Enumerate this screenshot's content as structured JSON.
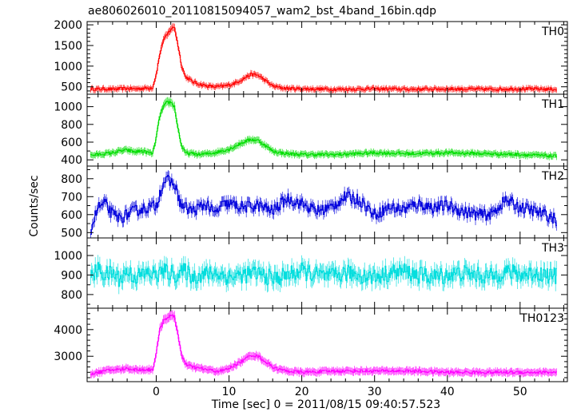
{
  "title": "ae806026010_20110815094057_wam2_bst_4band_16bin.qdp",
  "chart_data": {
    "type": "line",
    "ylabel": "Counts/sec",
    "xlabel": "Time [sec] 0 = 2011/08/15 09:40:57.523",
    "xlim": [
      -9.5,
      56.5
    ],
    "xticks": [
      0,
      10,
      20,
      30,
      40,
      50
    ],
    "x_minor_step": 2,
    "grid": false,
    "panels": [
      {
        "label": "TH0",
        "color": "#ff0000",
        "ylim": [
          320,
          2080
        ],
        "yticks": [
          500,
          1000,
          1500,
          2000
        ],
        "y_minor_step": 100,
        "x": [
          -9,
          -8,
          -7,
          -6,
          -5,
          -4,
          -3,
          -2,
          -1,
          -0.5,
          0,
          0.5,
          1,
          1.5,
          2,
          2.5,
          3,
          3.5,
          4,
          5,
          6,
          7,
          8,
          9,
          10,
          11,
          12,
          13,
          14,
          15,
          16,
          17,
          18,
          20,
          25,
          30,
          35,
          40,
          45,
          50,
          55
        ],
        "values": [
          450,
          440,
          450,
          440,
          450,
          460,
          450,
          460,
          470,
          480,
          800,
          1300,
          1650,
          1750,
          1900,
          1950,
          1500,
          1000,
          750,
          620,
          560,
          520,
          500,
          510,
          540,
          600,
          700,
          800,
          780,
          650,
          520,
          480,
          460,
          450,
          440,
          450,
          440,
          450,
          440,
          450,
          440
        ]
      },
      {
        "label": "TH1",
        "color": "#00dd00",
        "ylim": [
          330,
          1140
        ],
        "yticks": [
          400,
          600,
          800,
          1000
        ],
        "y_minor_step": 100,
        "x": [
          -9,
          -8,
          -7,
          -6,
          -5,
          -4,
          -3,
          -2,
          -1,
          -0.5,
          0,
          0.5,
          1,
          1.5,
          2,
          2.5,
          3,
          3.5,
          4,
          5,
          6,
          7,
          8,
          9,
          10,
          11,
          12,
          13,
          14,
          15,
          16,
          17,
          18,
          20,
          25,
          30,
          35,
          40,
          45,
          50,
          55
        ],
        "values": [
          450,
          460,
          470,
          480,
          500,
          510,
          490,
          500,
          480,
          470,
          650,
          900,
          1000,
          1050,
          1050,
          1000,
          750,
          550,
          480,
          470,
          460,
          470,
          480,
          500,
          520,
          560,
          600,
          630,
          620,
          560,
          500,
          480,
          470,
          460,
          460,
          480,
          470,
          480,
          470,
          460,
          440
        ]
      },
      {
        "label": "TH2",
        "color": "#0000dd",
        "ylim": [
          470,
          870
        ],
        "yticks": [
          500,
          600,
          700,
          800
        ],
        "y_minor_step": 50,
        "x": [
          -9,
          -8,
          -7,
          -6,
          -5,
          -4,
          -3,
          -2,
          -1,
          0,
          0.5,
          1,
          1.5,
          2,
          2.5,
          3,
          3.5,
          4,
          5,
          6,
          7,
          8,
          9,
          10,
          12,
          14,
          16,
          18,
          20,
          22,
          24,
          26,
          28,
          30,
          32,
          34,
          36,
          38,
          40,
          42,
          44,
          46,
          48,
          50,
          52,
          54,
          55
        ],
        "values": [
          520,
          640,
          660,
          600,
          580,
          600,
          620,
          630,
          640,
          650,
          720,
          780,
          790,
          780,
          770,
          700,
          650,
          640,
          620,
          640,
          660,
          600,
          650,
          660,
          640,
          650,
          620,
          690,
          660,
          620,
          640,
          700,
          680,
          600,
          640,
          630,
          660,
          640,
          650,
          620,
          600,
          600,
          680,
          640,
          620,
          590,
          570
        ]
      },
      {
        "label": "TH3",
        "color": "#00dddd",
        "ylim": [
          730,
          1090
        ],
        "yticks": [
          800,
          900,
          1000
        ],
        "y_minor_step": 50,
        "x": [
          -9,
          -8,
          -7,
          -6,
          -5,
          -4,
          -3,
          -2,
          -1,
          0,
          1,
          2,
          3,
          4,
          5,
          6,
          8,
          10,
          12,
          14,
          16,
          18,
          20,
          22,
          24,
          26,
          28,
          30,
          32,
          34,
          36,
          38,
          40,
          42,
          44,
          46,
          48,
          50,
          52,
          54,
          55
        ],
        "values": [
          880,
          930,
          900,
          910,
          880,
          920,
          890,
          900,
          910,
          900,
          920,
          910,
          900,
          920,
          890,
          900,
          910,
          890,
          900,
          910,
          880,
          900,
          920,
          900,
          890,
          910,
          900,
          890,
          910,
          920,
          900,
          890,
          900,
          910,
          900,
          890,
          920,
          900,
          910,
          900,
          890
        ]
      },
      {
        "label": "TH0123",
        "color": "#ff00ff",
        "ylim": [
          2050,
          4800
        ],
        "yticks": [
          3000,
          4000
        ],
        "y_minor_step": 200,
        "x": [
          -9,
          -8,
          -7,
          -6,
          -5,
          -4,
          -3,
          -2,
          -1,
          -0.5,
          0,
          0.5,
          1,
          1.5,
          2,
          2.5,
          3,
          3.5,
          4,
          5,
          6,
          7,
          8,
          9,
          10,
          11,
          12,
          13,
          14,
          15,
          16,
          17,
          18,
          20,
          25,
          30,
          35,
          40,
          45,
          50,
          55
        ],
        "values": [
          2350,
          2400,
          2450,
          2500,
          2500,
          2550,
          2500,
          2500,
          2500,
          2500,
          3100,
          4000,
          4350,
          4450,
          4500,
          4500,
          3800,
          3000,
          2700,
          2600,
          2550,
          2500,
          2450,
          2450,
          2550,
          2700,
          2850,
          3050,
          3000,
          2800,
          2600,
          2500,
          2450,
          2400,
          2450,
          2450,
          2450,
          2400,
          2400,
          2400,
          2400
        ]
      }
    ]
  }
}
